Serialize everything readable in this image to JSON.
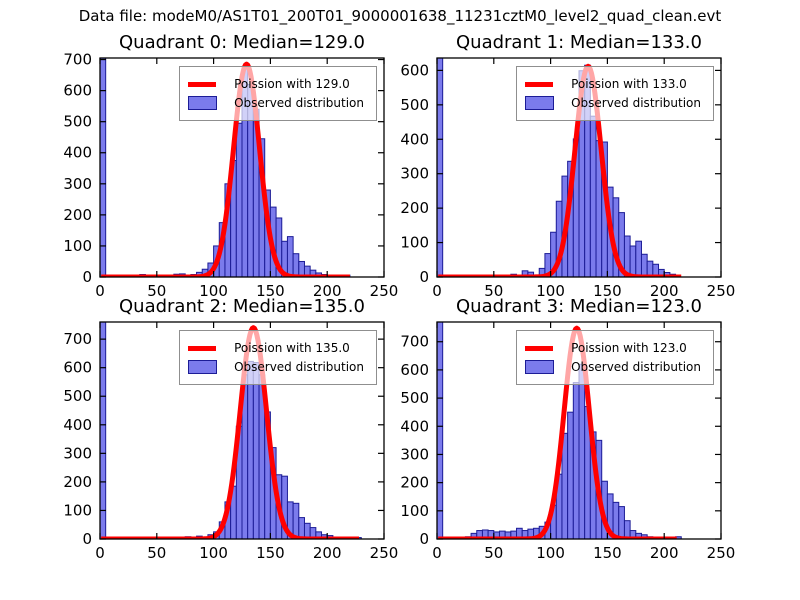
{
  "figure_title": "Data file: modeM0/AS1T01_200T01_9000001638_11231cztM0_level2_quad_clean.evt",
  "palette": {
    "bar_fill": "#7b7bec",
    "bar_edge": "#1c1c96",
    "curve": "#ff0000",
    "axes": "#000000",
    "legend_border": "#8f8f8f",
    "background": "#ffffff"
  },
  "chart_data": [
    {
      "type": "bar",
      "title": "Quadrant 0: Median=129.0",
      "median": 129.0,
      "legend": [
        "Poission with 129.0",
        "Observed distribution"
      ],
      "legend_position": "upper right",
      "grid": false,
      "xlim": [
        0,
        250
      ],
      "ylim": [
        0,
        705
      ],
      "xticks": [
        0,
        50,
        100,
        150,
        200,
        250
      ],
      "yticks": [
        0,
        100,
        200,
        300,
        400,
        500,
        600,
        700
      ],
      "bin_width": 5,
      "bars": [
        [
          0,
          760
        ],
        [
          15,
          3
        ],
        [
          25,
          3
        ],
        [
          35,
          8
        ],
        [
          40,
          5
        ],
        [
          50,
          3
        ],
        [
          60,
          4
        ],
        [
          65,
          9
        ],
        [
          70,
          10
        ],
        [
          75,
          5
        ],
        [
          80,
          8
        ],
        [
          85,
          15
        ],
        [
          90,
          25
        ],
        [
          95,
          45
        ],
        [
          100,
          100
        ],
        [
          105,
          175
        ],
        [
          110,
          300
        ],
        [
          115,
          375
        ],
        [
          120,
          495
        ],
        [
          125,
          670
        ],
        [
          130,
          620
        ],
        [
          135,
          540
        ],
        [
          140,
          445
        ],
        [
          145,
          280
        ],
        [
          150,
          225
        ],
        [
          155,
          190
        ],
        [
          160,
          115
        ],
        [
          165,
          130
        ],
        [
          170,
          75
        ],
        [
          175,
          50
        ],
        [
          180,
          35
        ],
        [
          185,
          22
        ],
        [
          190,
          13
        ],
        [
          195,
          8
        ],
        [
          200,
          5
        ],
        [
          215,
          6
        ]
      ],
      "fit": {
        "label": "Poission with 129.0",
        "mean": 129.0,
        "sigma": 11.4,
        "peak": 685,
        "x_start": 1,
        "x_end": 220
      }
    },
    {
      "type": "bar",
      "title": "Quadrant 1: Median=133.0",
      "median": 133.0,
      "legend": [
        "Poission with 133.0",
        "Observed distribution"
      ],
      "legend_position": "upper right",
      "grid": false,
      "xlim": [
        0,
        250
      ],
      "ylim": [
        0,
        636
      ],
      "xticks": [
        0,
        50,
        100,
        150,
        200,
        250
      ],
      "yticks": [
        0,
        100,
        200,
        300,
        400,
        500,
        600
      ],
      "bin_width": 5,
      "bars": [
        [
          0,
          700
        ],
        [
          20,
          3
        ],
        [
          35,
          4
        ],
        [
          45,
          3
        ],
        [
          65,
          8
        ],
        [
          70,
          4
        ],
        [
          75,
          18
        ],
        [
          80,
          14
        ],
        [
          85,
          6
        ],
        [
          90,
          25
        ],
        [
          95,
          68
        ],
        [
          100,
          130
        ],
        [
          105,
          220
        ],
        [
          110,
          293
        ],
        [
          115,
          336
        ],
        [
          120,
          401
        ],
        [
          125,
          599
        ],
        [
          130,
          615
        ],
        [
          135,
          467
        ],
        [
          140,
          396
        ],
        [
          145,
          392
        ],
        [
          150,
          261
        ],
        [
          155,
          230
        ],
        [
          160,
          187
        ],
        [
          165,
          119
        ],
        [
          170,
          90
        ],
        [
          175,
          104
        ],
        [
          180,
          66
        ],
        [
          185,
          46
        ],
        [
          190,
          37
        ],
        [
          195,
          22
        ],
        [
          200,
          13
        ],
        [
          205,
          8
        ]
      ],
      "fit": {
        "label": "Poission with 133.0",
        "mean": 133.0,
        "sigma": 11.5,
        "peak": 612,
        "x_start": 1,
        "x_end": 215
      }
    },
    {
      "type": "bar",
      "title": "Quadrant 2: Median=135.0",
      "median": 135.0,
      "legend": [
        "Poission with 135.0",
        "Observed distribution"
      ],
      "legend_position": "upper right",
      "grid": false,
      "xlim": [
        0,
        250
      ],
      "ylim": [
        0,
        760
      ],
      "xticks": [
        0,
        50,
        100,
        150,
        200,
        250
      ],
      "yticks": [
        0,
        100,
        200,
        300,
        400,
        500,
        600,
        700
      ],
      "bin_width": 5,
      "bars": [
        [
          0,
          800
        ],
        [
          20,
          3
        ],
        [
          35,
          5
        ],
        [
          45,
          4
        ],
        [
          55,
          3
        ],
        [
          65,
          4
        ],
        [
          75,
          8
        ],
        [
          80,
          5
        ],
        [
          85,
          10
        ],
        [
          90,
          6
        ],
        [
          95,
          15
        ],
        [
          100,
          25
        ],
        [
          105,
          60
        ],
        [
          110,
          130
        ],
        [
          115,
          185
        ],
        [
          120,
          395
        ],
        [
          125,
          575
        ],
        [
          130,
          622
        ],
        [
          135,
          618
        ],
        [
          140,
          575
        ],
        [
          145,
          445
        ],
        [
          150,
          320
        ],
        [
          155,
          225
        ],
        [
          160,
          220
        ],
        [
          165,
          130
        ],
        [
          170,
          125
        ],
        [
          175,
          75
        ],
        [
          180,
          55
        ],
        [
          185,
          40
        ],
        [
          190,
          25
        ],
        [
          195,
          15
        ],
        [
          200,
          12
        ],
        [
          210,
          6
        ],
        [
          225,
          5
        ]
      ],
      "fit": {
        "label": "Poission with 135.0",
        "mean": 135.0,
        "sigma": 11.6,
        "peak": 740,
        "x_start": 1,
        "x_end": 228
      }
    },
    {
      "type": "bar",
      "title": "Quadrant 3: Median=123.0",
      "median": 123.0,
      "legend": [
        "Poission with 123.0",
        "Observed distribution"
      ],
      "legend_position": "upper right",
      "grid": false,
      "xlim": [
        0,
        250
      ],
      "ylim": [
        0,
        770
      ],
      "xticks": [
        0,
        50,
        100,
        150,
        200,
        250
      ],
      "yticks": [
        0,
        100,
        200,
        300,
        400,
        500,
        600,
        700
      ],
      "bin_width": 5,
      "bars": [
        [
          0,
          820
        ],
        [
          15,
          4
        ],
        [
          25,
          8
        ],
        [
          30,
          20
        ],
        [
          35,
          30
        ],
        [
          40,
          32
        ],
        [
          45,
          30
        ],
        [
          50,
          25
        ],
        [
          55,
          28
        ],
        [
          60,
          25
        ],
        [
          65,
          28
        ],
        [
          70,
          38
        ],
        [
          75,
          30
        ],
        [
          80,
          35
        ],
        [
          85,
          38
        ],
        [
          90,
          45
        ],
        [
          95,
          60
        ],
        [
          100,
          120
        ],
        [
          105,
          230
        ],
        [
          110,
          375
        ],
        [
          115,
          450
        ],
        [
          120,
          555
        ],
        [
          125,
          620
        ],
        [
          130,
          470
        ],
        [
          135,
          380
        ],
        [
          140,
          350
        ],
        [
          145,
          205
        ],
        [
          150,
          160
        ],
        [
          155,
          130
        ],
        [
          160,
          115
        ],
        [
          165,
          65
        ],
        [
          170,
          30
        ],
        [
          175,
          20
        ],
        [
          180,
          15
        ],
        [
          185,
          8
        ],
        [
          210,
          8
        ]
      ],
      "fit": {
        "label": "Poission with 123.0",
        "mean": 123.0,
        "sigma": 11.1,
        "peak": 748,
        "x_start": 1,
        "x_end": 211
      }
    }
  ]
}
